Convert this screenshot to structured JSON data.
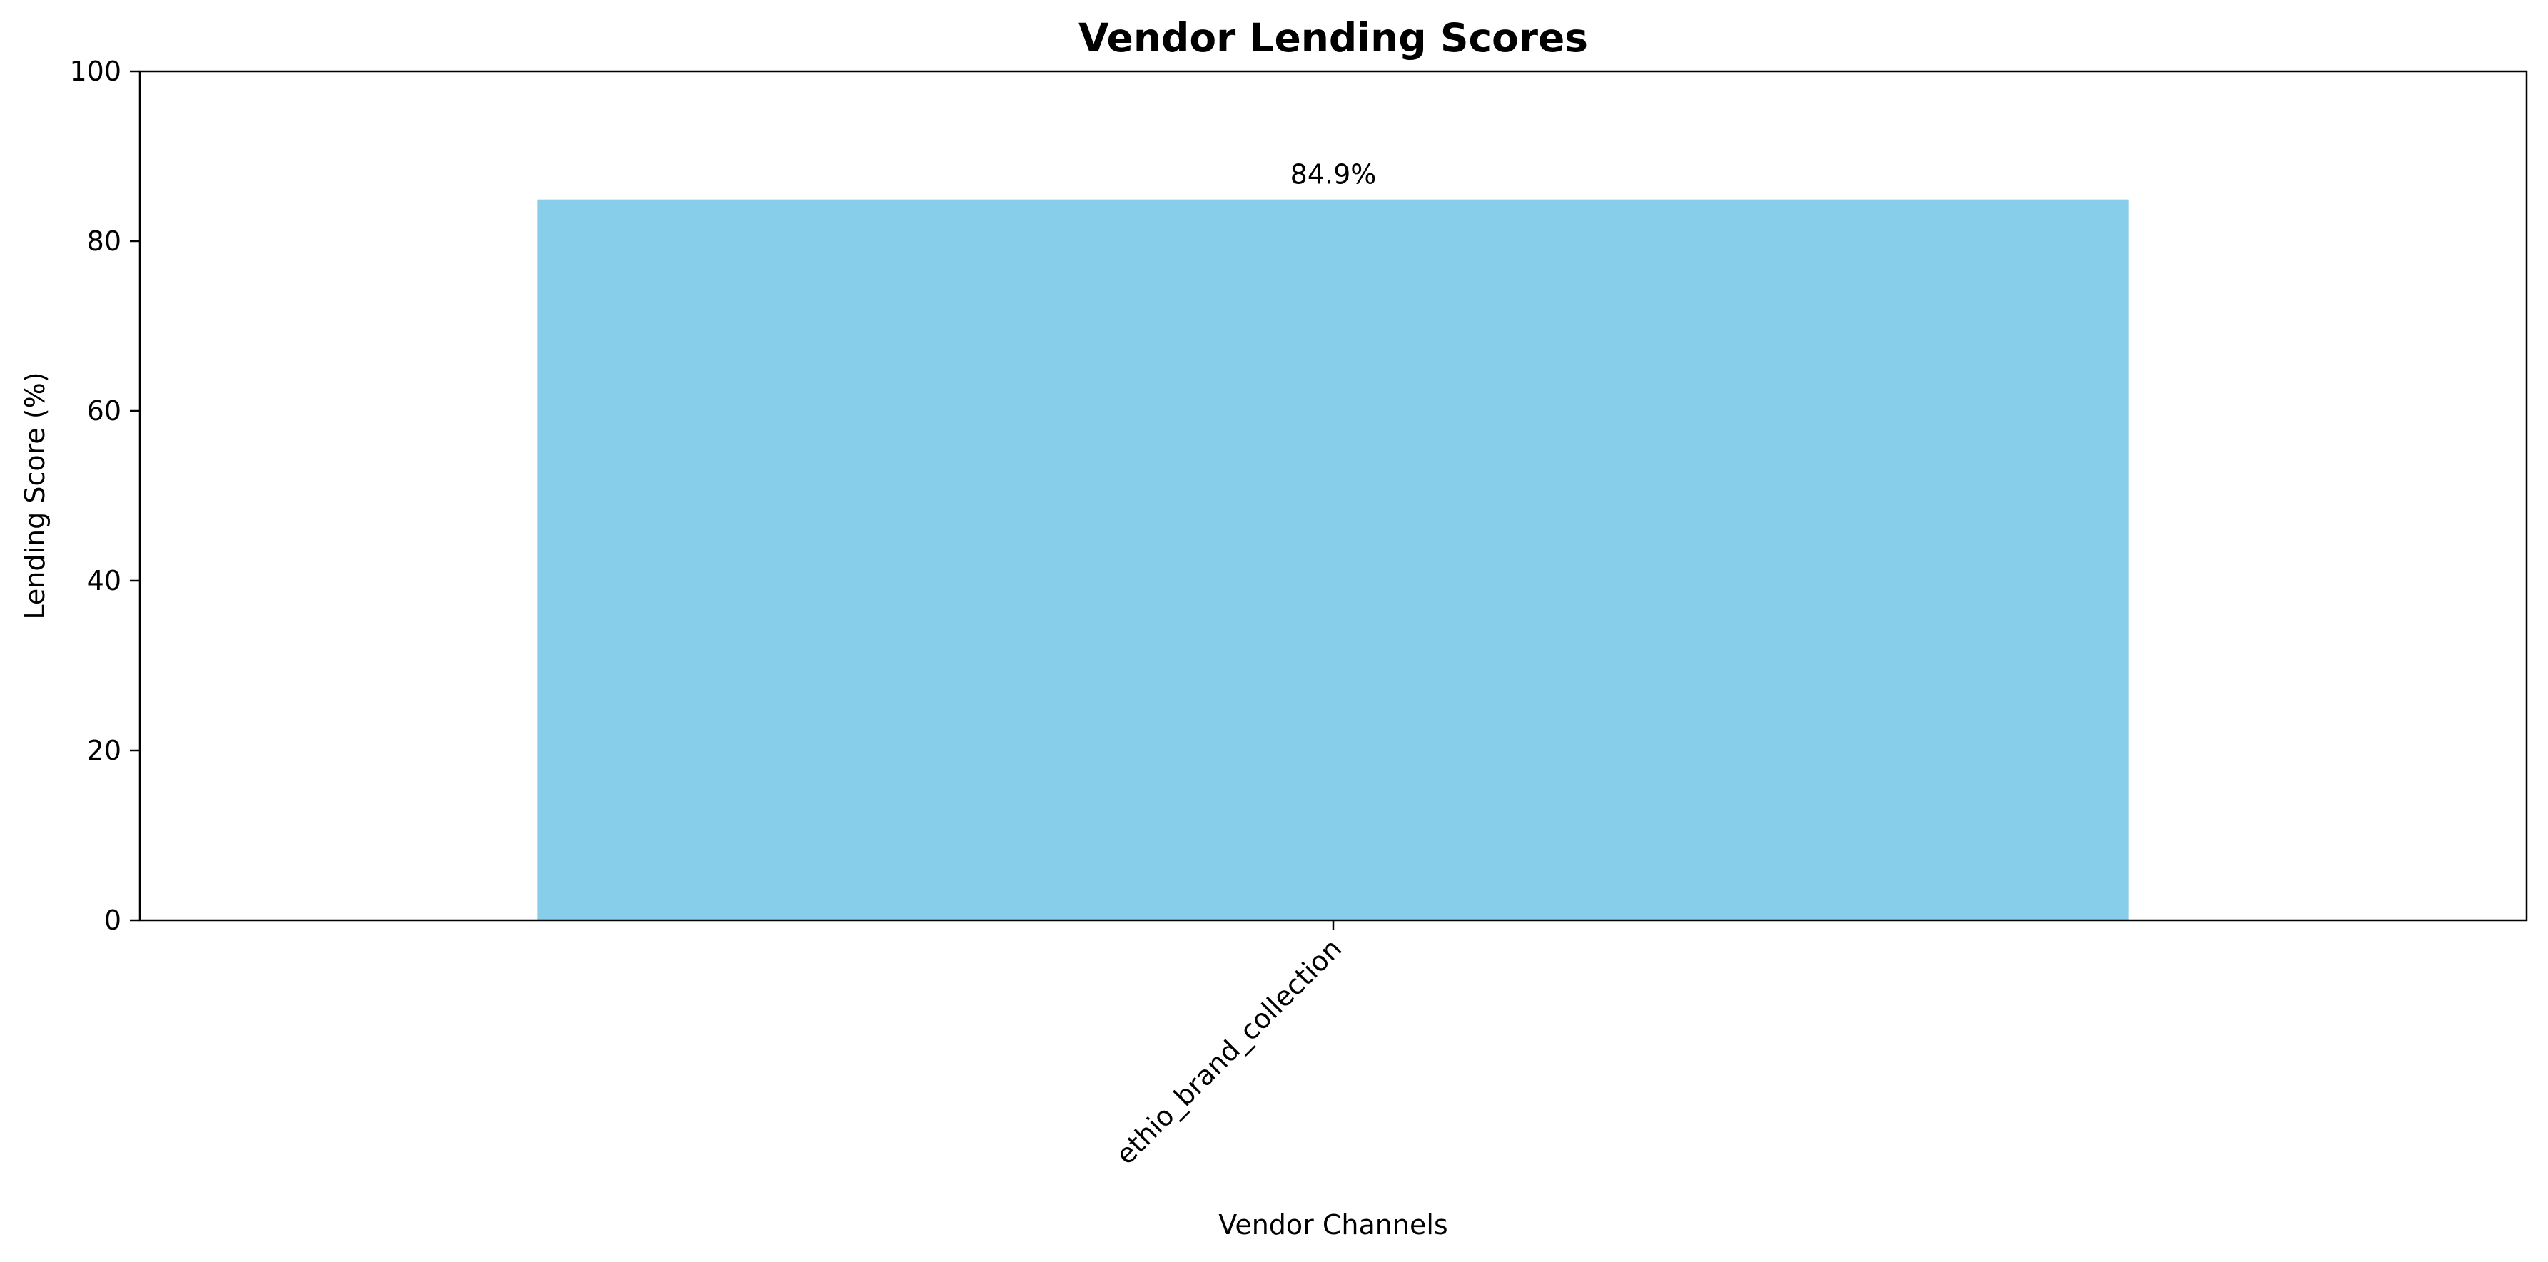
{
  "chart_data": {
    "type": "bar",
    "title": "Vendor Lending Scores",
    "xlabel": "Vendor Channels",
    "ylabel": "Lending Score (%)",
    "categories": [
      "ethio_brand_collection"
    ],
    "values": [
      84.9
    ],
    "data_labels": [
      "84.9%"
    ],
    "ylim": [
      0,
      100
    ],
    "y_ticks": [
      0,
      20,
      40,
      60,
      80,
      100
    ],
    "grid": false,
    "legend": "none",
    "bar_color": "#87CEEB",
    "axis_color": "#000000"
  }
}
